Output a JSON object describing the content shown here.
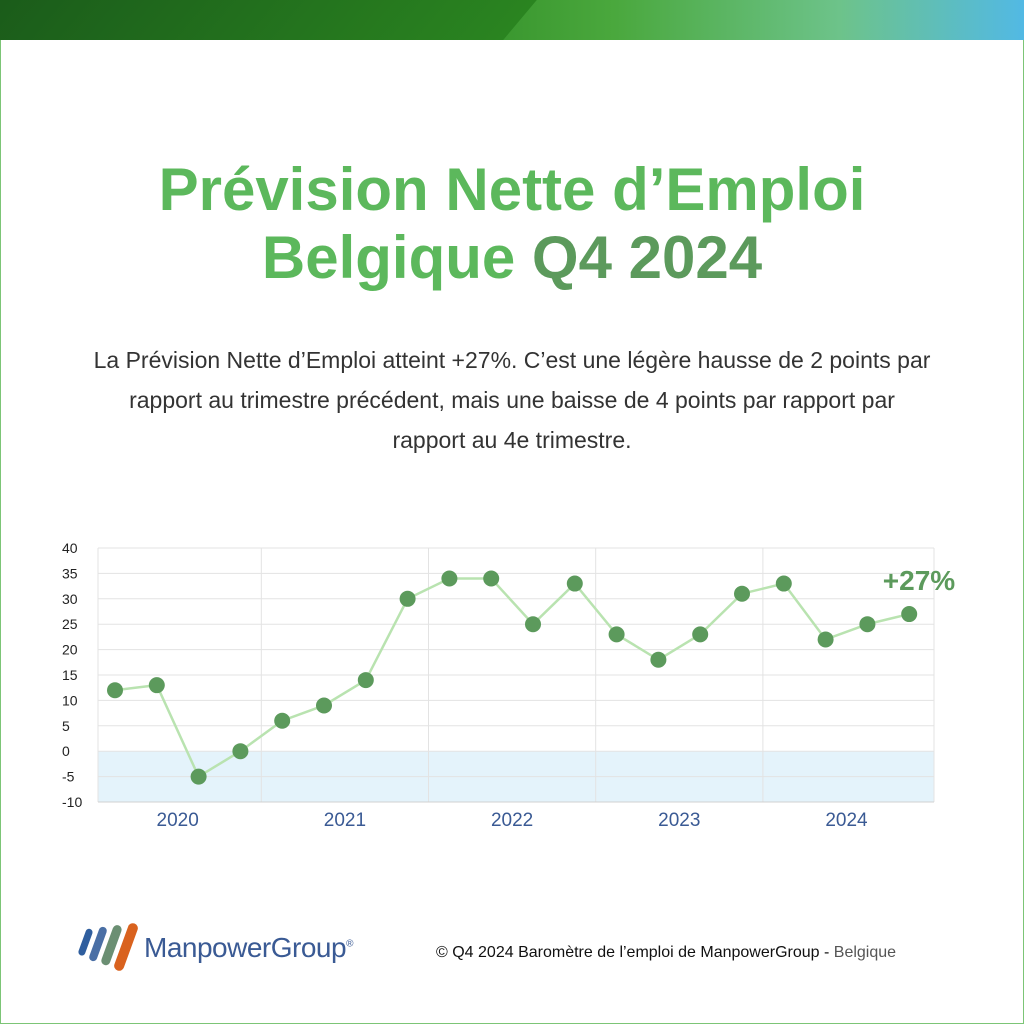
{
  "header": {
    "title_line1": "Prévision Nette d’Emploi",
    "title_line2_plain": "Belgique",
    "title_line2_emph": "Q4 2024"
  },
  "description": "La Prévision Nette d’Emploi atteint +27%. C’est une légère hausse de 2 points par rapport au trimestre précédent, mais une baisse de 4 points par rapport par rapport au 4e trimestre.",
  "colors": {
    "title": "#5cb85c",
    "title_emphasis": "#5c9a5c",
    "line": "#b9e3b0",
    "marker": "#5c9a5c",
    "negative_band": "#e4f3fb",
    "year_label": "#3a5a94"
  },
  "chart_data": {
    "type": "line",
    "years": [
      "2020",
      "2021",
      "2022",
      "2023",
      "2024"
    ],
    "quarters_per_year": 4,
    "series": [
      {
        "values": [
          12,
          13,
          -5,
          0,
          6,
          9,
          14,
          30,
          34,
          34,
          25,
          33,
          23,
          18,
          23,
          31,
          33,
          22,
          25,
          27
        ]
      }
    ],
    "ylim": [
      -10,
      40
    ],
    "yticks": [
      "40",
      "35",
      "30",
      "25",
      "20",
      "15",
      "10",
      "5",
      "0",
      "-5",
      "-10"
    ],
    "grid": true,
    "annotation": "+27%"
  },
  "footer": {
    "brand": "ManpowerGroup",
    "brand_mark": "®",
    "copyright": "© Q4 2024 Baromètre de l’emploi de ManpowerGroup",
    "separator": " - ",
    "country": "Belgique"
  },
  "icons": [
    "manpowergroup-logo-icon"
  ]
}
